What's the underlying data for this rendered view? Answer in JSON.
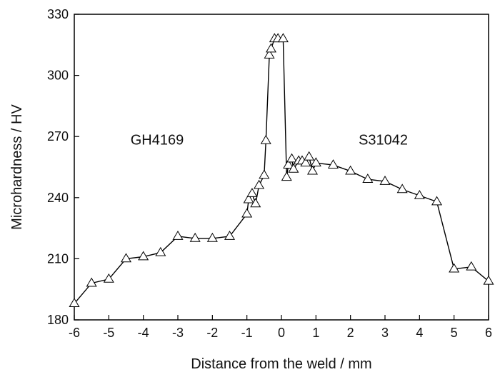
{
  "chart_data": {
    "type": "line",
    "title": "",
    "xlabel": "Distance from the weld / mm",
    "ylabel": "Microhardness / HV",
    "xlim": [
      -6,
      6
    ],
    "ylim": [
      180,
      330
    ],
    "xticks": [
      -6,
      -5,
      -4,
      -3,
      -2,
      -1,
      0,
      1,
      2,
      3,
      4,
      5,
      6
    ],
    "yticks": [
      180,
      210,
      240,
      270,
      300,
      330
    ],
    "grid": false,
    "marker": "open-triangle",
    "line_color": "#000000",
    "annotations": [
      {
        "text": "GH4169",
        "x": -3.6,
        "y": 266
      },
      {
        "text": "S31042",
        "x": 2.95,
        "y": 266
      }
    ],
    "series": [
      {
        "x": [
          -6,
          -5.5,
          -5,
          -4.5,
          -4,
          -3.5,
          -3,
          -2.5,
          -2,
          -1.5,
          -1,
          -0.95,
          -0.85,
          -0.75,
          -0.65,
          -0.5,
          -0.45,
          -0.35,
          -0.3,
          -0.2,
          -0.1,
          0.05,
          0.15,
          0.2,
          0.3,
          0.35,
          0.5,
          0.6,
          0.7,
          0.8,
          0.9,
          1.0,
          1.5,
          2.0,
          2.5,
          3.0,
          3.5,
          4.0,
          4.5,
          5.0,
          5.5,
          6.0
        ],
        "y": [
          188,
          198,
          200,
          210,
          211,
          213,
          221,
          220,
          220,
          221,
          232,
          239,
          242,
          237,
          246,
          251,
          268,
          310,
          313,
          318,
          318,
          318,
          250,
          256,
          259,
          254,
          258,
          258,
          257,
          260,
          253,
          257,
          256,
          253,
          249,
          248,
          244,
          241,
          238,
          205,
          206,
          199
        ]
      }
    ]
  }
}
